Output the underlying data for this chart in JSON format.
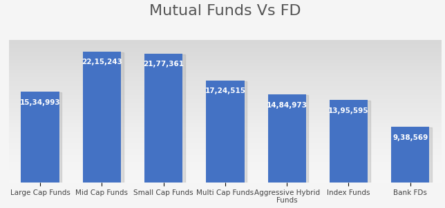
{
  "title": "Mutual Funds Vs FD",
  "categories": [
    "Large Cap Funds",
    "Mid Cap Funds",
    "Small Cap Funds",
    "Multi Cap Funds",
    "Aggressive Hybrid\nFunds",
    "Index Funds",
    "Bank FDs"
  ],
  "values": [
    1534993,
    2215243,
    2177361,
    1724515,
    1484973,
    1395595,
    938569
  ],
  "labels": [
    "15,34,993",
    "22,15,243",
    "21,77,361",
    "17,24,515",
    "14,84,973",
    "13,95,595",
    "9,38,569"
  ],
  "bar_color": "#4472C4",
  "background_color_top": "#F5F5F5",
  "background_color_bottom": "#D8D8D8",
  "title_fontsize": 16,
  "label_fontsize": 7.5,
  "tick_fontsize": 7.5,
  "label_color": "#FFFFFF",
  "title_color": "#555555"
}
